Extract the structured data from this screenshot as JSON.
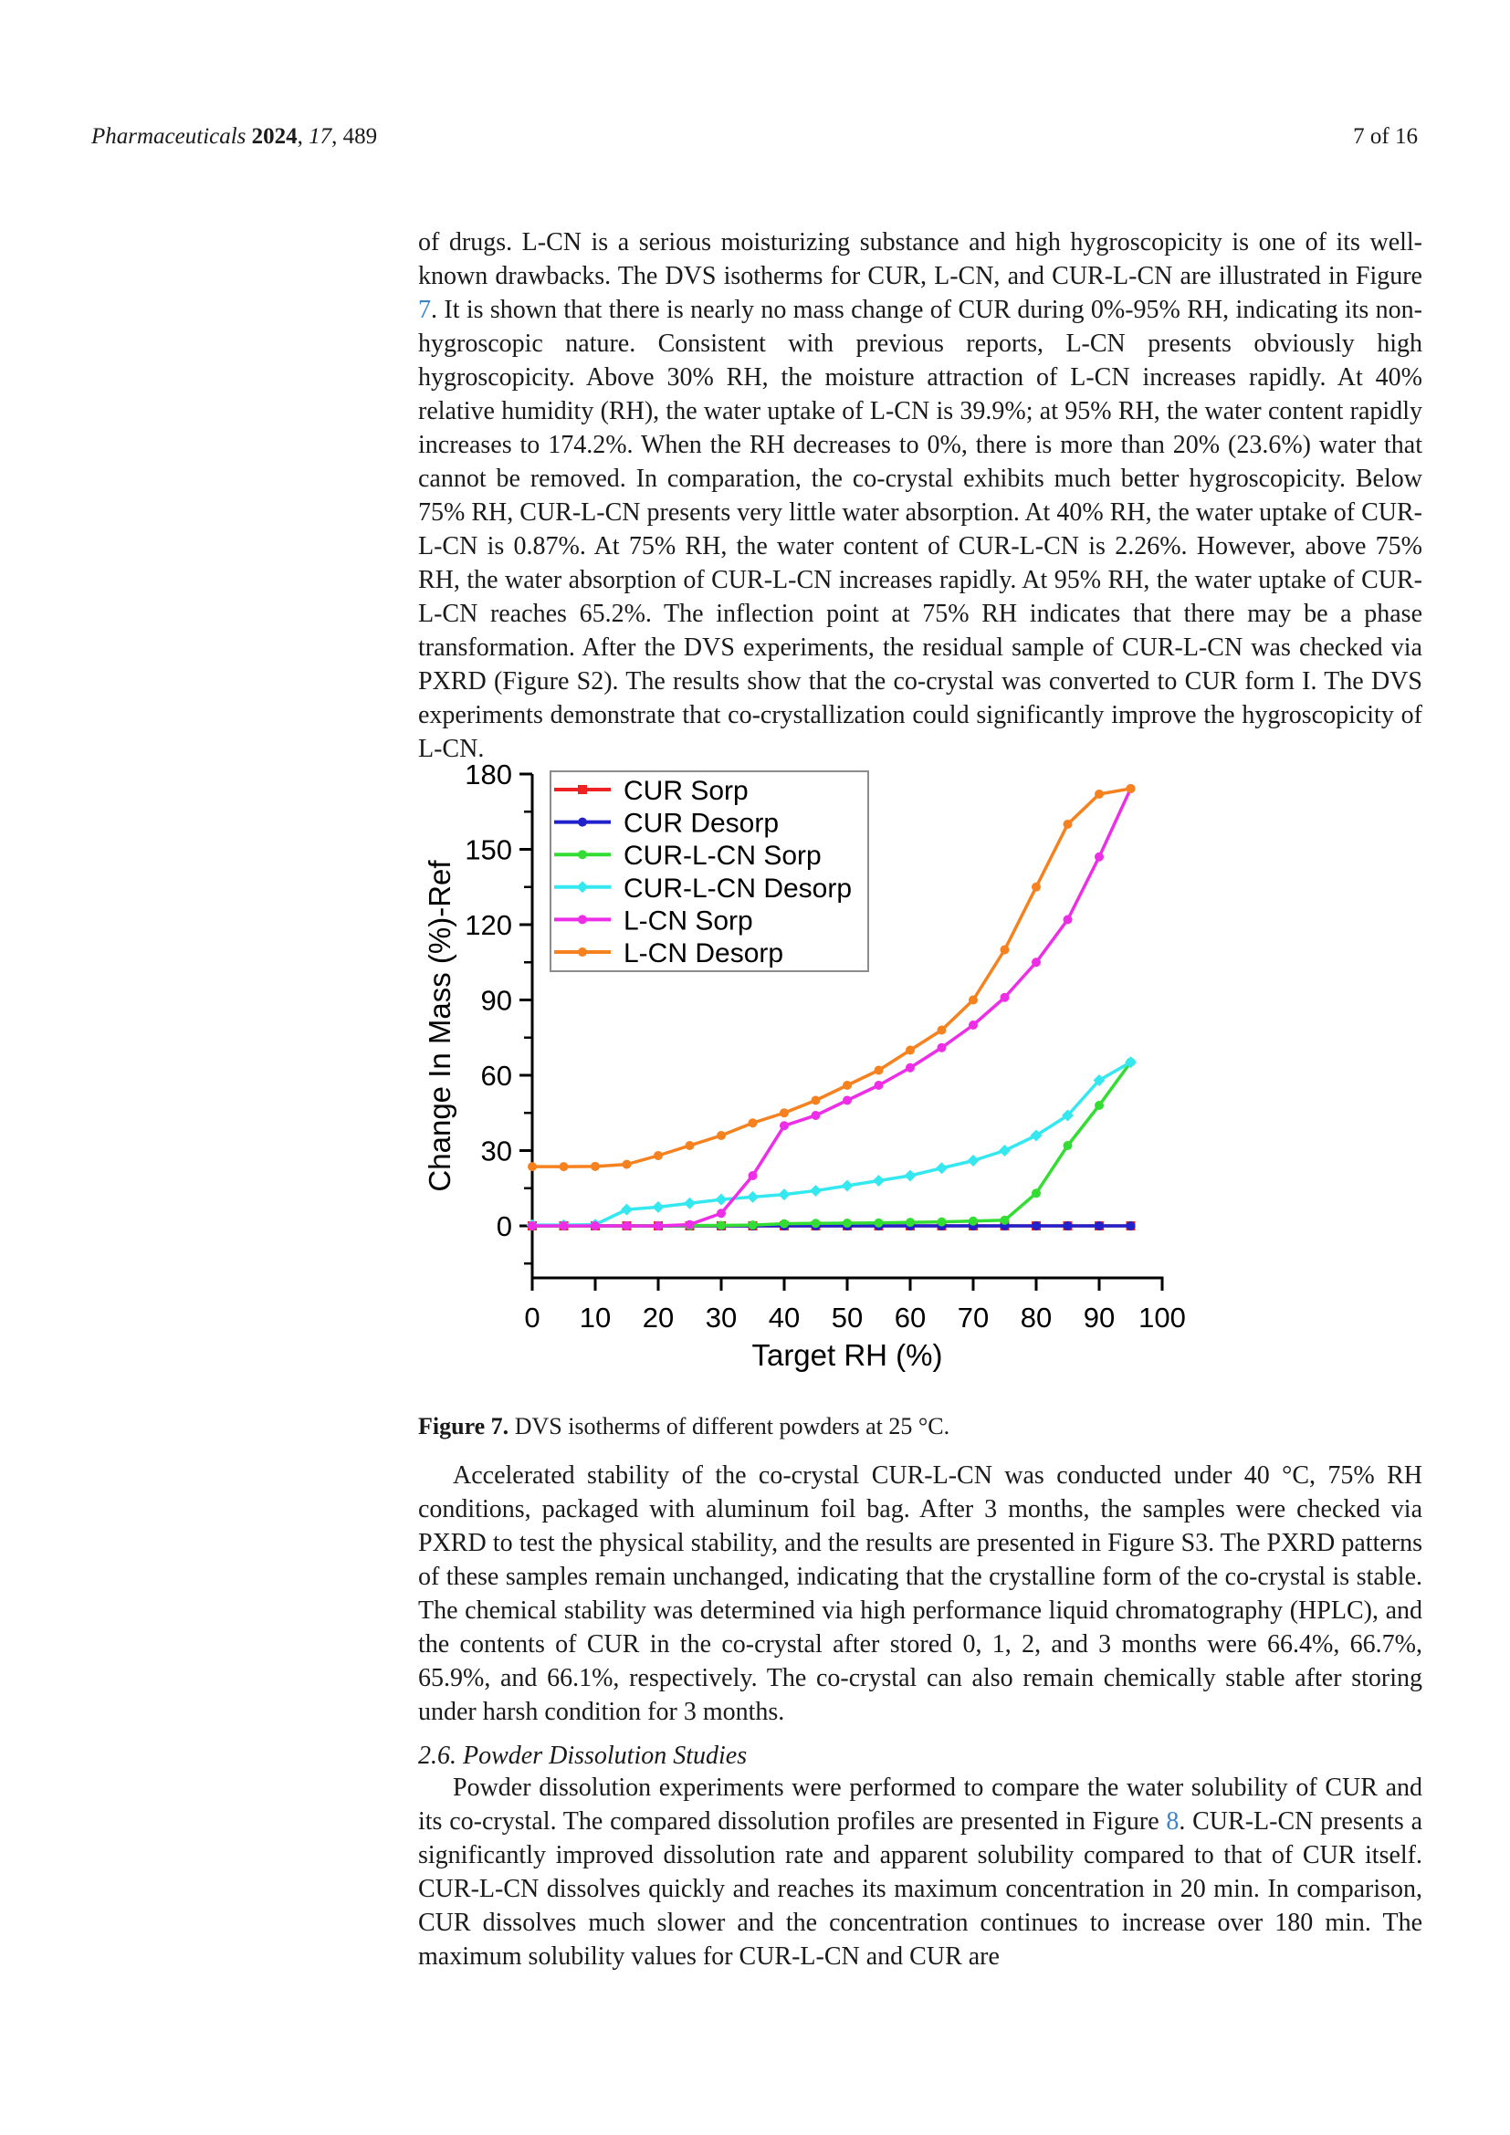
{
  "header": {
    "journal_italic": "Pharmaceuticals",
    "space": " ",
    "year_bold": "2024",
    "comma1": ", ",
    "volume_italic": "17",
    "comma2": ", ",
    "article_number": "489",
    "page_info": "7 of 16"
  },
  "paragraph1": {
    "before_link": "of drugs. L-CN is a serious moisturizing substance and high hygroscopicity is one of its well-known drawbacks. The DVS isotherms for CUR, L-CN, and CUR-L-CN are illustrated in Figure ",
    "link_text": "7",
    "after_link": ". It is shown that there is nearly no mass change of CUR during 0%-95% RH, indicating its non-hygroscopic nature. Consistent with previous reports, L-CN presents obviously high hygroscopicity. Above 30% RH, the moisture attraction of L-CN increases rapidly. At 40% relative humidity (RH), the water uptake of L-CN is 39.9%; at 95% RH, the water content rapidly increases to 174.2%. When the RH decreases to 0%, there is more than 20% (23.6%) water that cannot be removed. In comparation, the co-crystal exhibits much better hygroscopicity. Below 75% RH, CUR-L-CN presents very little water absorption. At 40% RH, the water uptake of CUR-L-CN is 0.87%. At 75% RH, the water content of CUR-L-CN is 2.26%. However, above 75% RH, the water absorption of CUR-L-CN increases rapidly. At 95% RH, the water uptake of CUR-L-CN reaches 65.2%. The inflection point at 75% RH indicates that there may be a phase transformation. After the DVS experiments, the residual sample of CUR-L-CN was checked via PXRD (Figure S2). The results show that the co-crystal was converted to CUR form I. The DVS experiments demonstrate that co-crystallization could significantly improve the hygroscopicity of L-CN."
  },
  "figure_caption": {
    "label": "Figure 7.",
    "text": " DVS isotherms of different powders at 25 °C."
  },
  "paragraph2": "Accelerated stability of the co-crystal CUR-L-CN was conducted under 40 °C, 75% RH conditions, packaged with aluminum foil bag. After 3 months, the samples were checked via PXRD to test the physical stability, and the results are presented in Figure S3. The PXRD patterns of these samples remain unchanged, indicating that the crystalline form of the co-crystal is stable. The chemical stability was determined via high performance liquid chromatography (HPLC), and the contents of CUR in the co-crystal after stored 0, 1, 2, and 3 months were 66.4%, 66.7%, 65.9%, and 66.1%, respectively. The co-crystal can also remain chemically stable after storing under harsh condition for 3 months.",
  "section_heading": "2.6. Powder Dissolution Studies",
  "paragraph3": {
    "before_link": "Powder dissolution experiments were performed to compare the water solubility of CUR and its co-crystal. The compared dissolution profiles are presented in Figure ",
    "link_text": "8",
    "after_link": ". CUR-L-CN presents a significantly improved dissolution rate and apparent solubility compared to that of CUR itself. CUR-L-CN dissolves quickly and reaches its maximum concentration in 20 min. In comparison, CUR dissolves much slower and the concentration continues to increase over 180 min. The maximum solubility values for CUR-L-CN and CUR are"
  },
  "colors": {
    "link_blue": "#3D85C6",
    "axis_black": "#000000",
    "legend_border": "#8c8c8c"
  },
  "chart_data": {
    "type": "line",
    "title": "",
    "xlabel": "Target RH (%)",
    "ylabel": "Change In Mass (%)-Ref",
    "xlim": [
      0,
      100
    ],
    "ylim": [
      -20,
      180
    ],
    "x_ticks": [
      0,
      10,
      20,
      30,
      40,
      50,
      60,
      70,
      80,
      90,
      100
    ],
    "y_ticks": [
      0,
      30,
      60,
      90,
      120,
      150,
      180
    ],
    "y_minor_ticks": [
      -15,
      15,
      45,
      75,
      105,
      135,
      165
    ],
    "grid": false,
    "legend_position": "top-left",
    "x": [
      0,
      5,
      10,
      15,
      20,
      25,
      30,
      35,
      40,
      45,
      50,
      55,
      60,
      65,
      70,
      75,
      80,
      85,
      90,
      95
    ],
    "series": [
      {
        "name": "CUR Sorp",
        "color": "#EE2222",
        "marker": "square",
        "values": [
          0,
          0,
          0,
          0,
          0,
          0,
          0,
          0,
          0,
          0,
          0,
          0,
          0,
          0,
          0,
          0,
          0,
          0,
          0,
          0
        ]
      },
      {
        "name": "CUR Desorp",
        "color": "#2222CC",
        "marker": "circle",
        "values": [
          0,
          0,
          0,
          0,
          0,
          0,
          0,
          0,
          0,
          0,
          0,
          0,
          0,
          0,
          0,
          0,
          0,
          0,
          0,
          0
        ]
      },
      {
        "name": "CUR-L-CN Sorp",
        "color": "#33DD33",
        "marker": "circle",
        "values": [
          0,
          0,
          0,
          0,
          0.1,
          0.1,
          0.2,
          0.3,
          0.87,
          1,
          1.1,
          1.2,
          1.4,
          1.6,
          1.9,
          2.26,
          13,
          32,
          48,
          65.2
        ]
      },
      {
        "name": "CUR-L-CN Desorp",
        "color": "#35E8F0",
        "marker": "diamond",
        "values": [
          0.3,
          0.3,
          0.5,
          6.5,
          7.5,
          9,
          10.5,
          11.5,
          12.5,
          14,
          16,
          18,
          20,
          23,
          26,
          30,
          36,
          44,
          58,
          65.2
        ]
      },
      {
        "name": "L-CN Sorp",
        "color": "#EE2EE6",
        "marker": "circle",
        "values": [
          0,
          0,
          0,
          0,
          0,
          0.5,
          5,
          20,
          39.9,
          44,
          50,
          56,
          63,
          71,
          80,
          91,
          105,
          122,
          147,
          174.2
        ]
      },
      {
        "name": "L-CN Desorp",
        "color": "#F5821F",
        "marker": "circle",
        "values": [
          23.6,
          23.6,
          23.7,
          24.5,
          28,
          32,
          36,
          41,
          45,
          50,
          56,
          62,
          70,
          78,
          90,
          110,
          135,
          160,
          172,
          174.2
        ]
      }
    ],
    "annotations": []
  }
}
